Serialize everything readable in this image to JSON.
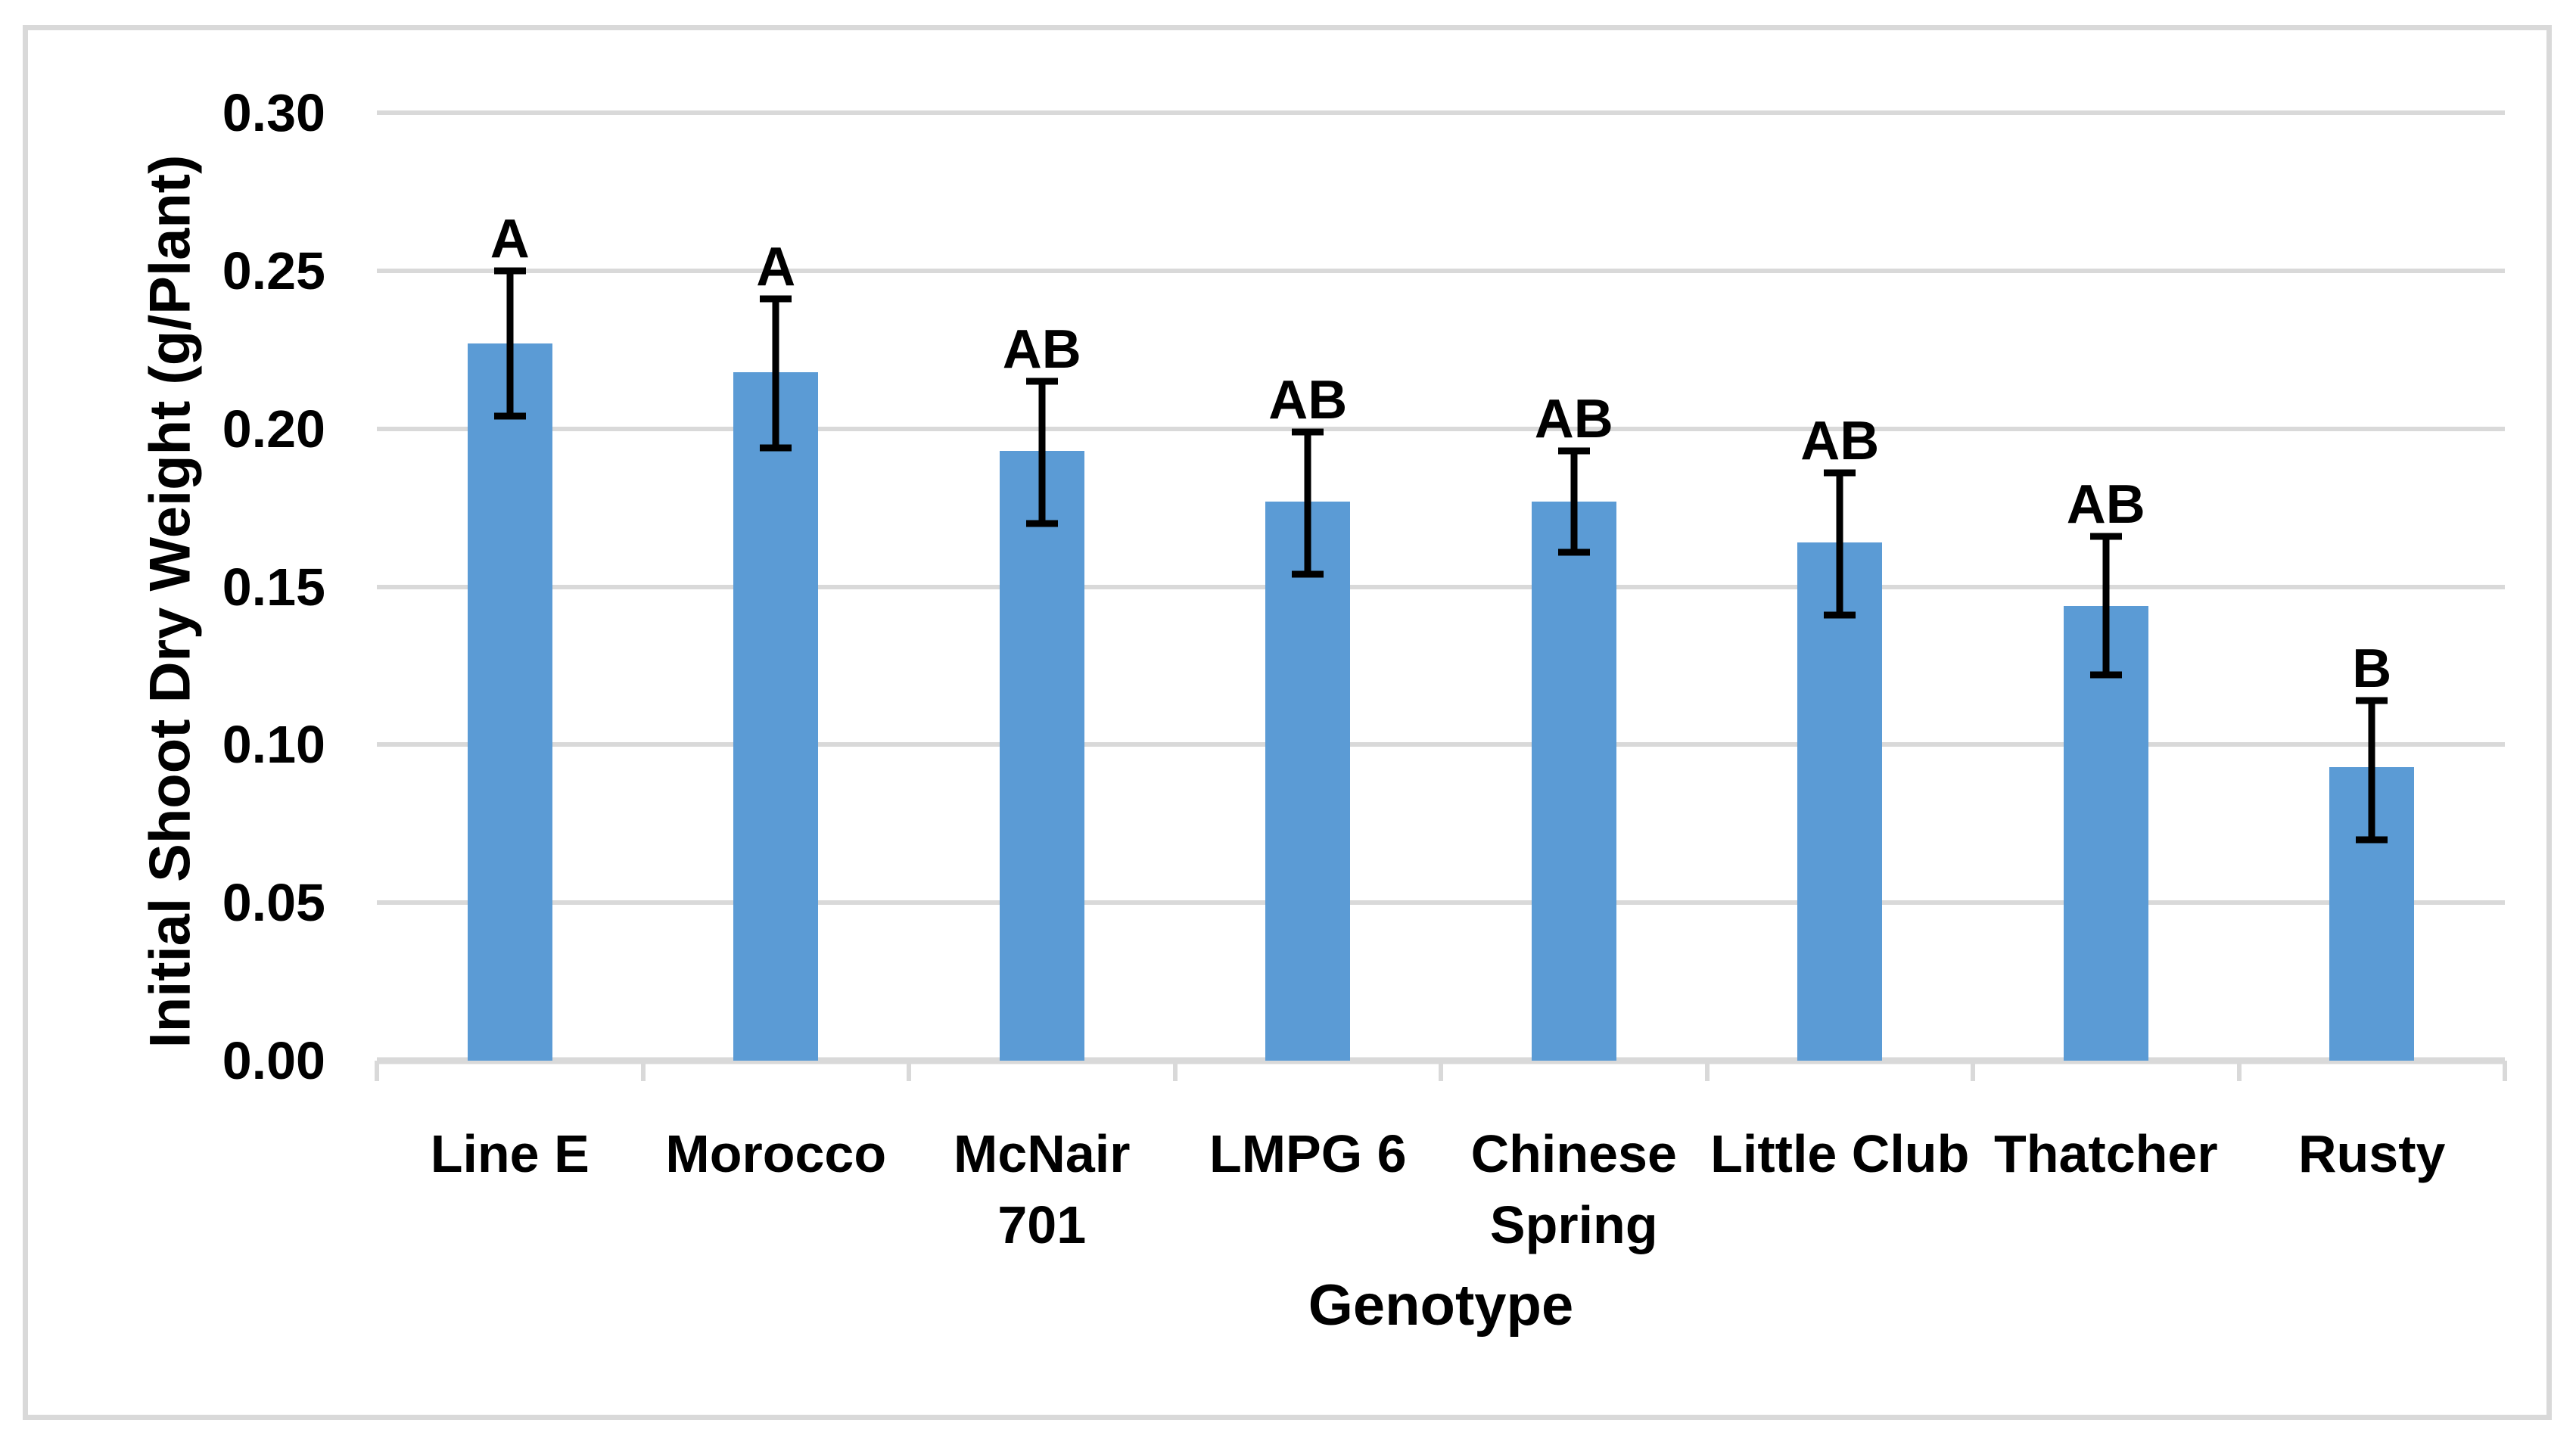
{
  "chart_data": {
    "type": "bar",
    "title": "",
    "xlabel": "Genotype",
    "ylabel": "Initial Shoot Dry Weight (g/Plant)",
    "categories": [
      "Line E",
      "Morocco",
      "McNair 701",
      "LMPG 6",
      "Chinese Spring",
      "Little Club",
      "Thatcher",
      "Rusty"
    ],
    "category_label_lines": [
      "Line E",
      "Morocco",
      "McNair\n701",
      "LMPG 6",
      "Chinese\nSpring",
      "Little Club",
      "Thatcher",
      "Rusty"
    ],
    "values": [
      0.227,
      0.218,
      0.193,
      0.177,
      0.177,
      0.164,
      0.144,
      0.093
    ],
    "error_low": [
      0.204,
      0.194,
      0.17,
      0.154,
      0.161,
      0.141,
      0.122,
      0.07
    ],
    "error_high": [
      0.25,
      0.241,
      0.215,
      0.199,
      0.193,
      0.186,
      0.166,
      0.114
    ],
    "significance_letters": [
      "A",
      "A",
      "AB",
      "AB",
      "AB",
      "AB",
      "AB",
      "B"
    ],
    "y_tick_labels": [
      "0.00",
      "0.05",
      "0.10",
      "0.15",
      "0.20",
      "0.25",
      "0.30"
    ],
    "y_tick_values": [
      0,
      0.05,
      0.1,
      0.15,
      0.2,
      0.25,
      0.3
    ],
    "ylim": [
      0,
      0.3
    ],
    "grid": "horizontal",
    "legend": "none",
    "colors": {
      "bar_fill": "#5b9bd5",
      "error_bar": "#000000",
      "gridline": "#d9d9d9",
      "axis_line": "#d9d9d9",
      "frame_border": "#d9d9d9",
      "text": "#000000",
      "background": "#ffffff"
    }
  }
}
